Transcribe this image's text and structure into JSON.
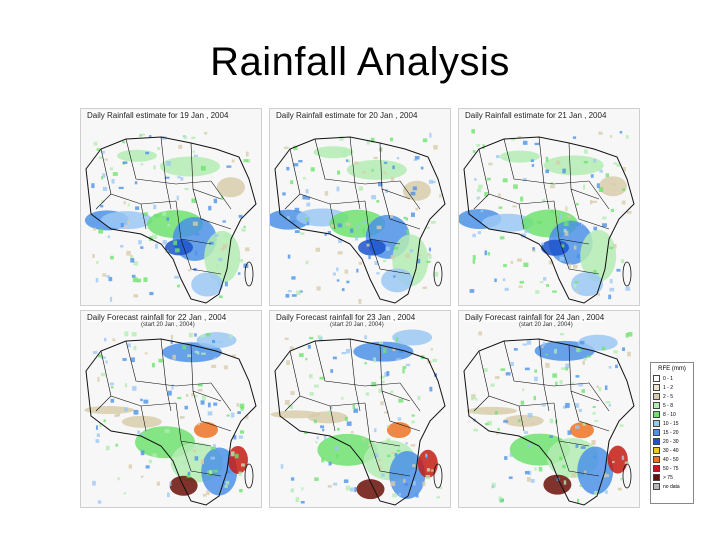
{
  "slide": {
    "title": "Rainfall Analysis"
  },
  "panels": [
    {
      "title": "Daily Rainfall estimate for 19 Jan , 2004",
      "subtitle": ""
    },
    {
      "title": "Daily Rainfall estimate for 20 Jan , 2004",
      "subtitle": ""
    },
    {
      "title": "Daily Rainfall estimate for 21 Jan , 2004",
      "subtitle": ""
    },
    {
      "title": "Daily Forecast rainfall for 22 Jan , 2004",
      "subtitle": "(start 20 Jan , 2004)"
    },
    {
      "title": "Daily Forecast rainfall for 23 Jan , 2004",
      "subtitle": "(start 20 Jan , 2004)"
    },
    {
      "title": "Daily Forecast rainfall for 24 Jan , 2004",
      "subtitle": "(start 20 Jan , 2004)"
    }
  ],
  "legend": {
    "title": "RFE (mm)",
    "entries": [
      {
        "label": "0 - 1",
        "color": "#ffffff"
      },
      {
        "label": "1 - 2",
        "color": "#ece4cc"
      },
      {
        "label": "2 - 5",
        "color": "#d8ccaa"
      },
      {
        "label": "5 - 8",
        "color": "#b4ecb4"
      },
      {
        "label": "8 - 10",
        "color": "#6ee26e"
      },
      {
        "label": "10 - 15",
        "color": "#9cc8f4"
      },
      {
        "label": "15 - 20",
        "color": "#4c92e8"
      },
      {
        "label": "20 - 30",
        "color": "#1c54cc"
      },
      {
        "label": "30 - 40",
        "color": "#f4c430"
      },
      {
        "label": "40 - 50",
        "color": "#ec7424"
      },
      {
        "label": "50 - 75",
        "color": "#c41c14"
      },
      {
        "label": "> 75",
        "color": "#6a1008"
      },
      {
        "label": "no data",
        "color": "#b8b8b8"
      }
    ]
  },
  "colors": {
    "border": "#111111",
    "light_green": "#b4ecb4",
    "green": "#6ee26e",
    "tan": "#d8ccaa",
    "light_blue": "#9cc8f4",
    "blue": "#4c92e8",
    "dark_blue": "#1c54cc",
    "red": "#c41c14",
    "dark_red": "#6a1008",
    "orange": "#ec7424"
  }
}
